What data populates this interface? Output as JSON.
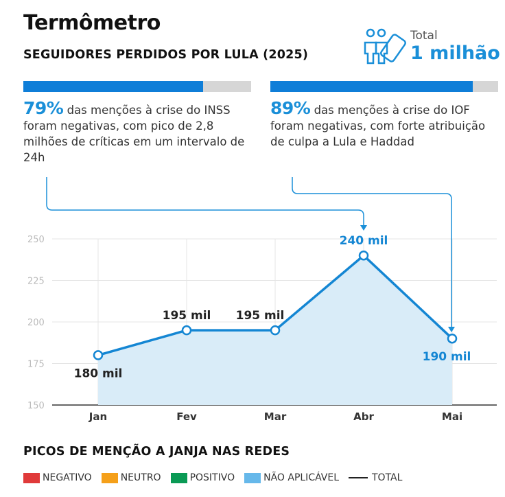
{
  "header": {
    "title": "Termômetro",
    "subtitle": "SEGUIDORES PERDIDOS POR LULA (2025)",
    "total_label": "Total",
    "total_value": "1 milhão",
    "icon": "people-phone-icon"
  },
  "stats": [
    {
      "percent": "79%",
      "fraction": 0.79,
      "text": " das menções à crise do INSS foram negativas, com pico de 2,8 milhões de críticas em um intervalo de 24h"
    },
    {
      "percent": "89%",
      "fraction": 0.89,
      "text": " das menções à crise do IOF foram negativas, com forte atribuição de culpa a Lula e Haddad"
    }
  ],
  "chart_data": {
    "type": "area",
    "categories": [
      "Jan",
      "Fev",
      "Mar",
      "Abr",
      "Mai"
    ],
    "values": [
      180,
      195,
      195,
      240,
      190
    ],
    "data_labels": [
      "180 mil",
      "195 mil",
      "195 mil",
      "240 mil",
      "190 mil"
    ],
    "ylim": [
      150,
      250
    ],
    "yticks": [
      150,
      175,
      200,
      225,
      250
    ],
    "grid": true,
    "colors": {
      "line": "#1486d3",
      "fill": "#d9ecf8",
      "label_highlight": "#1486d3",
      "label_default": "#222222"
    },
    "highlight_points": [
      "Abr",
      "Mai"
    ]
  },
  "section2": {
    "title": "PICOS DE MENÇÃO A JANJA NAS REDES",
    "legend": [
      {
        "label": "NEGATIVO",
        "color": "#e03a3a"
      },
      {
        "label": "NEUTRO",
        "color": "#f5a01a"
      },
      {
        "label": "POSITIVO",
        "color": "#0a9a55"
      },
      {
        "label": "NÃO APLICÁVEL",
        "color": "#66b8ea"
      }
    ],
    "total_label": "TOTAL"
  }
}
